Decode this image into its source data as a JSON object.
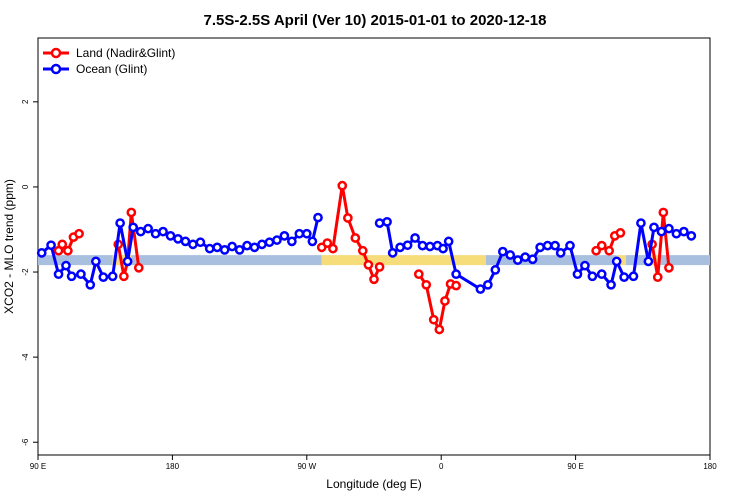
{
  "chart_data": {
    "type": "line",
    "title": "7.5S-2.5S April (Ver 10)   2015-01-01 to 2020-12-18",
    "xlabel": "Longitude (deg E)",
    "ylabel": "XCO2 - MLO trend (ppm)",
    "xlim": [
      0,
      360
    ],
    "ylim": [
      -6.3,
      3.5
    ],
    "x_ticks": [
      0,
      72,
      144,
      216,
      288,
      360
    ],
    "x_tick_labels": [
      "90 E",
      "180",
      "90 W",
      "0",
      "90 E",
      "180"
    ],
    "y_ticks": [
      2,
      0,
      -2,
      -4,
      -6
    ],
    "y_tick_labels": [
      "2",
      "0",
      "-2",
      "-4",
      "-6"
    ],
    "legend": {
      "position": "top-left"
    },
    "colors": {
      "land": "#ff0000",
      "ocean": "#0000ff",
      "band_ocean": "#a8bfe0",
      "band_land": "#f7dc7a"
    },
    "band": {
      "y": -1.72,
      "segments": [
        {
          "surface": "ocean",
          "x": [
            0,
            40
          ]
        },
        {
          "surface": "land",
          "x": [
            40,
            50
          ]
        },
        {
          "surface": "ocean",
          "x": [
            50,
            152
          ]
        },
        {
          "surface": "land",
          "x": [
            152,
            240
          ]
        },
        {
          "surface": "ocean",
          "x": [
            240,
            310
          ]
        },
        {
          "surface": "land",
          "x": [
            310,
            315
          ]
        },
        {
          "surface": "ocean",
          "x": [
            315,
            326
          ]
        },
        {
          "surface": "land",
          "x": [
            326,
            332
          ]
        },
        {
          "surface": "ocean",
          "x": [
            332,
            360
          ]
        }
      ]
    },
    "series": [
      {
        "name": "Land (Nadir&Glint)",
        "color": "#ff0000",
        "segments": [
          [
            [
              11,
              -1.5
            ],
            [
              13,
              -1.35
            ],
            [
              16,
              -1.5
            ],
            [
              19,
              -1.18
            ],
            [
              22,
              -1.1
            ]
          ],
          [
            [
              43,
              -1.35
            ],
            [
              46,
              -2.1
            ],
            [
              48,
              -1.75
            ],
            [
              50,
              -0.6
            ],
            [
              54,
              -1.9
            ]
          ],
          [
            [
              152,
              -1.42
            ],
            [
              155,
              -1.32
            ],
            [
              158,
              -1.45
            ],
            [
              163,
              0.03
            ],
            [
              166,
              -0.73
            ],
            [
              170,
              -1.2
            ],
            [
              174,
              -1.5
            ],
            [
              177,
              -1.83
            ],
            [
              180,
              -2.17
            ],
            [
              183,
              -1.88
            ]
          ],
          [
            [
              204,
              -2.05
            ],
            [
              208,
              -2.3
            ],
            [
              212,
              -3.12
            ],
            [
              215,
              -3.35
            ],
            [
              218,
              -2.68
            ],
            [
              221,
              -2.28
            ],
            [
              224,
              -2.32
            ]
          ],
          [
            [
              299,
              -1.5
            ],
            [
              302,
              -1.38
            ],
            [
              306,
              -1.5
            ],
            [
              309,
              -1.15
            ],
            [
              312,
              -1.08
            ]
          ],
          [
            [
              329,
              -1.35
            ],
            [
              332,
              -2.12
            ],
            [
              335,
              -0.6
            ],
            [
              338,
              -1.9
            ]
          ]
        ]
      },
      {
        "name": "Ocean (Glint)",
        "color": "#0000ff",
        "segments": [
          [
            [
              2,
              -1.55
            ],
            [
              7,
              -1.37
            ],
            [
              11,
              -2.05
            ],
            [
              15,
              -1.85
            ],
            [
              18,
              -2.1
            ],
            [
              23,
              -2.05
            ],
            [
              28,
              -2.3
            ],
            [
              31,
              -1.75
            ],
            [
              35,
              -2.12
            ],
            [
              40,
              -2.1
            ],
            [
              44,
              -0.85
            ],
            [
              48,
              -1.75
            ],
            [
              51,
              -0.95
            ],
            [
              55,
              -1.05
            ],
            [
              59,
              -0.98
            ],
            [
              63,
              -1.1
            ],
            [
              67,
              -1.05
            ],
            [
              71,
              -1.15
            ],
            [
              75,
              -1.22
            ],
            [
              79,
              -1.28
            ],
            [
              83,
              -1.35
            ],
            [
              87,
              -1.3
            ],
            [
              92,
              -1.45
            ],
            [
              96,
              -1.42
            ],
            [
              100,
              -1.48
            ],
            [
              104,
              -1.4
            ],
            [
              108,
              -1.48
            ],
            [
              112,
              -1.38
            ],
            [
              116,
              -1.42
            ],
            [
              120,
              -1.35
            ],
            [
              124,
              -1.3
            ],
            [
              128,
              -1.25
            ],
            [
              132,
              -1.15
            ],
            [
              136,
              -1.28
            ],
            [
              140,
              -1.1
            ],
            [
              144,
              -1.1
            ],
            [
              147,
              -1.28
            ],
            [
              150,
              -0.72
            ]
          ],
          [
            [
              183,
              -0.85
            ],
            [
              187,
              -0.82
            ],
            [
              190,
              -1.55
            ],
            [
              194,
              -1.42
            ],
            [
              198,
              -1.37
            ],
            [
              202,
              -1.2
            ],
            [
              206,
              -1.38
            ],
            [
              210,
              -1.4
            ],
            [
              214,
              -1.38
            ],
            [
              217,
              -1.45
            ],
            [
              220,
              -1.28
            ],
            [
              224,
              -2.05
            ],
            [
              237,
              -2.4
            ],
            [
              241,
              -2.3
            ],
            [
              245,
              -1.95
            ],
            [
              249,
              -1.52
            ],
            [
              253,
              -1.6
            ],
            [
              257,
              -1.72
            ],
            [
              261,
              -1.65
            ],
            [
              265,
              -1.7
            ],
            [
              269,
              -1.42
            ],
            [
              273,
              -1.38
            ],
            [
              277,
              -1.38
            ],
            [
              280,
              -1.55
            ],
            [
              285,
              -1.38
            ],
            [
              289,
              -2.05
            ],
            [
              293,
              -1.85
            ],
            [
              297,
              -2.1
            ],
            [
              302,
              -2.05
            ],
            [
              307,
              -2.3
            ],
            [
              310,
              -1.75
            ],
            [
              314,
              -2.12
            ],
            [
              319,
              -2.1
            ],
            [
              323,
              -0.85
            ],
            [
              327,
              -1.75
            ],
            [
              330,
              -0.95
            ],
            [
              334,
              -1.05
            ],
            [
              338,
              -0.98
            ],
            [
              342,
              -1.1
            ],
            [
              346,
              -1.05
            ],
            [
              350,
              -1.15
            ]
          ]
        ]
      }
    ]
  }
}
